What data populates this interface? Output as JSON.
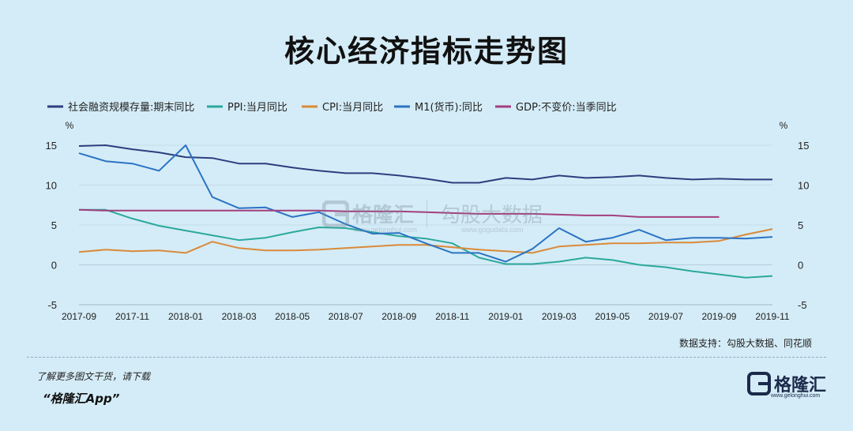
{
  "title": "核心经济指标走势图",
  "source": "数据支持：勾股大数据、同花顺",
  "footer": {
    "line1": "了解更多图文干货，请下载",
    "line2": "“格隆汇App”"
  },
  "logo": {
    "text": "格隆汇",
    "sub": "www.gelonghui.com"
  },
  "watermark": {
    "left": "格隆汇",
    "left_url": "www.gelonghui.com",
    "right": "勾股大数据",
    "right_url": "www.gogudata.com"
  },
  "chart_data": {
    "type": "line",
    "x": [
      "2017-09",
      "2017-10",
      "2017-11",
      "2017-12",
      "2018-01",
      "2018-02",
      "2018-03",
      "2018-04",
      "2018-05",
      "2018-06",
      "2018-07",
      "2018-08",
      "2018-09",
      "2018-10",
      "2018-11",
      "2018-12",
      "2019-01",
      "2019-02",
      "2019-03",
      "2019-04",
      "2019-05",
      "2019-06",
      "2019-07",
      "2019-08",
      "2019-09",
      "2019-10",
      "2019-11"
    ],
    "xticks": [
      "2017-09",
      "2017-11",
      "2018-01",
      "2018-03",
      "2018-05",
      "2018-07",
      "2018-09",
      "2018-11",
      "2019-01",
      "2019-03",
      "2019-05",
      "2019-07",
      "2019-09",
      "2019-11"
    ],
    "ylim": [
      -5,
      15
    ],
    "yticks": [
      "-5",
      "0",
      "5",
      "10",
      "15"
    ],
    "yunit_left": "%",
    "yunit_right": "%",
    "grid": true,
    "legend_position": "top",
    "series": [
      {
        "name": "社会融资规模存量:期末同比",
        "color": "#2b3f7e",
        "values": [
          14.9,
          15.0,
          14.5,
          14.1,
          13.5,
          13.4,
          12.7,
          12.7,
          12.2,
          11.8,
          11.5,
          11.5,
          11.2,
          10.8,
          10.3,
          10.3,
          10.9,
          10.7,
          11.2,
          10.9,
          11.0,
          11.2,
          10.9,
          10.7,
          10.8,
          10.7,
          10.7
        ]
      },
      {
        "name": "PPI:当月同比",
        "color": "#2ba89c",
        "values": [
          6.9,
          6.9,
          5.8,
          4.9,
          4.3,
          3.7,
          3.1,
          3.4,
          4.1,
          4.7,
          4.6,
          4.1,
          3.6,
          3.3,
          2.7,
          0.9,
          0.1,
          0.1,
          0.4,
          0.9,
          0.6,
          0.0,
          -0.3,
          -0.8,
          -1.2,
          -1.6,
          -1.4
        ]
      },
      {
        "name": "CPI:当月同比",
        "color": "#d98a3a",
        "values": [
          1.6,
          1.9,
          1.7,
          1.8,
          1.5,
          2.9,
          2.1,
          1.8,
          1.8,
          1.9,
          2.1,
          2.3,
          2.5,
          2.5,
          2.2,
          1.9,
          1.7,
          1.5,
          2.3,
          2.5,
          2.7,
          2.7,
          2.8,
          2.8,
          3.0,
          3.8,
          4.5
        ]
      },
      {
        "name": "M1(货币):同比",
        "color": "#2b73c4",
        "values": [
          14.0,
          13.0,
          12.7,
          11.8,
          15.0,
          8.5,
          7.1,
          7.2,
          6.0,
          6.6,
          5.1,
          3.9,
          4.0,
          2.7,
          1.5,
          1.5,
          0.4,
          2.0,
          4.6,
          2.9,
          3.4,
          4.4,
          3.1,
          3.4,
          3.4,
          3.3,
          3.5
        ]
      },
      {
        "name": "GDP:不变价:当季同比",
        "color": "#a33f7e",
        "values": [
          6.9,
          6.8,
          6.8,
          6.8,
          6.8,
          6.8,
          6.8,
          6.8,
          6.8,
          6.8,
          6.7,
          6.7,
          6.7,
          6.6,
          6.5,
          6.4,
          6.4,
          6.4,
          6.3,
          6.2,
          6.2,
          6.0,
          6.0,
          6.0,
          6.0,
          null,
          null
        ]
      }
    ]
  }
}
